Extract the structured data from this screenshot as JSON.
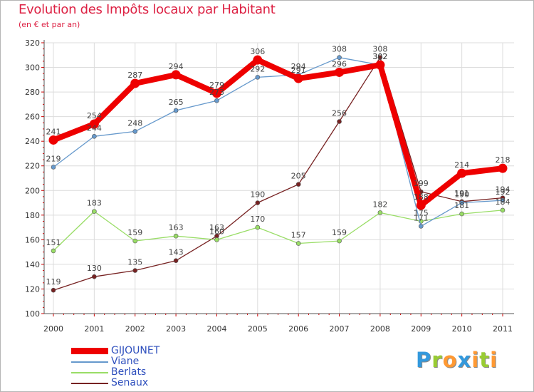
{
  "chart_data": {
    "type": "line",
    "title": "Evolution des Impôts locaux par Habitant",
    "subtitle": "(en € et par an)",
    "xlabel": "",
    "ylabel": "",
    "categories": [
      "2000",
      "2001",
      "2002",
      "2003",
      "2004",
      "2005",
      "2006",
      "2007",
      "2008",
      "2009",
      "2010",
      "2011"
    ],
    "ylim": [
      100,
      320
    ],
    "yticks": [
      100,
      120,
      140,
      160,
      180,
      200,
      220,
      240,
      260,
      280,
      300,
      320
    ],
    "grid": true,
    "legend_position": "bottom-left",
    "series": [
      {
        "name": "GIJOUNET",
        "color": "#ee0000",
        "values": [
          241,
          254,
          287,
          294,
          279,
          306,
          291,
          296,
          302,
          188,
          214,
          218
        ]
      },
      {
        "name": "Viane",
        "color": "#6699cc",
        "values": [
          219,
          244,
          248,
          265,
          273,
          292,
          294,
          308,
          302,
          171,
          190,
          192
        ]
      },
      {
        "name": "Berlats",
        "color": "#99dd66",
        "values": [
          151,
          183,
          159,
          163,
          160,
          170,
          157,
          159,
          182,
          175,
          181,
          184
        ]
      },
      {
        "name": "Senaux",
        "color": "#772222",
        "values": [
          119,
          130,
          135,
          143,
          163,
          190,
          205,
          256,
          308,
          199,
          191,
          194
        ]
      }
    ],
    "data_labels": [
      [
        "241",
        "254",
        "287",
        "294",
        "279",
        "306",
        "291",
        "296",
        "302",
        "188",
        "214",
        "218"
      ],
      [
        "219",
        "244",
        "248",
        "265",
        "273",
        "292",
        "294",
        "308",
        "302",
        "171",
        "190",
        "192"
      ],
      [
        "151",
        "183",
        "159",
        "163",
        "160",
        "170",
        "157",
        "159",
        "182",
        "175",
        "181",
        "184"
      ],
      [
        "119",
        "130",
        "135",
        "143",
        "163",
        "190",
        "205",
        "256",
        "308",
        "199",
        "191",
        "194"
      ]
    ]
  },
  "logo": {
    "letters": [
      "P",
      "r",
      "o",
      "x",
      "i",
      "t",
      "i"
    ],
    "colors": [
      "#3399dd",
      "#99cc33",
      "#ff9933",
      "#3399dd",
      "#ff9933",
      "#99cc33",
      "#ff9933"
    ]
  }
}
